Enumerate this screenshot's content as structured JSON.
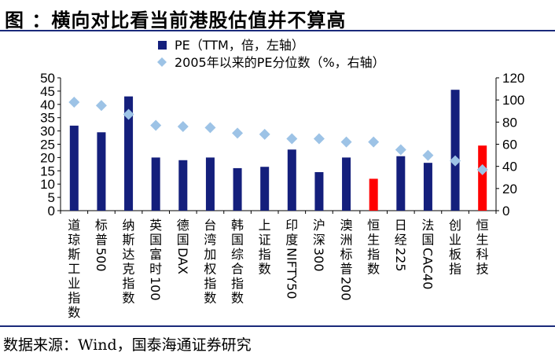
{
  "title": "图 ：横向对比看当前港股估值并不算高",
  "source": "数据来源：Wind，国泰海通证券研究",
  "colors": {
    "bar": "#141f7c",
    "bar_highlight": "#ff0000",
    "marker": "#9dc3e6",
    "rule": "#1a2a7a"
  },
  "chart_data": {
    "type": "bar",
    "categories": [
      "道琼斯工业指数",
      "标普500",
      "纳斯达克指数",
      "英国富时100",
      "德国DAX",
      "台湾加权指数",
      "韩国综合指数",
      "上证指数",
      "印度NIFTY50",
      "沪深300",
      "澳洲标普200",
      "恒生指数",
      "日经225",
      "法国CAC40",
      "创业板指",
      "恒生科技"
    ],
    "highlight_categories": [
      "恒生指数",
      "恒生科技"
    ],
    "series": [
      {
        "name": "PE（TTM，倍，左轴）",
        "type": "bar",
        "axis": "left",
        "values": [
          32,
          29.5,
          43,
          20,
          19,
          20,
          16,
          16.5,
          23,
          14.5,
          20,
          12,
          20.5,
          18,
          45.5,
          24.5
        ]
      },
      {
        "name": "2005年以来的PE分位数（%，右轴）",
        "type": "scatter",
        "axis": "right",
        "marker": "diamond",
        "values": [
          98,
          95,
          87,
          77,
          76,
          75,
          70,
          69,
          65,
          65,
          62,
          62,
          55,
          50,
          45,
          37
        ]
      }
    ],
    "left_axis": {
      "min": 0,
      "max": 50,
      "ticks": [
        0,
        5,
        10,
        15,
        20,
        25,
        30,
        35,
        40,
        45,
        50
      ]
    },
    "right_axis": {
      "min": 0,
      "max": 120,
      "ticks": [
        0,
        20,
        40,
        60,
        80,
        100,
        120
      ]
    },
    "legend_position": "top"
  }
}
